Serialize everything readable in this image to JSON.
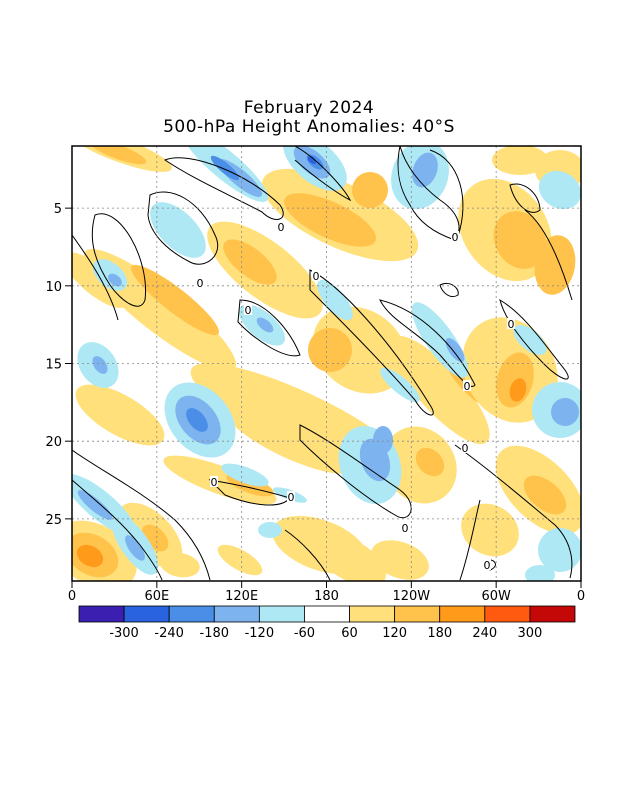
{
  "title": "February 2024",
  "subtitle": "500-hPa Height Anomalies: 40°S",
  "chart_data": {
    "type": "heatmap",
    "description_units": "geopotential height anomaly (m)",
    "x_ticks": [
      "0",
      "60E",
      "120E",
      "180",
      "120W",
      "60W",
      "0"
    ],
    "y_ticks": [
      "5",
      "10",
      "15",
      "20",
      "25"
    ],
    "y_range": [
      1,
      29
    ],
    "grid": true,
    "contour_label": "0",
    "colorbar": {
      "labels": [
        "-300",
        "-240",
        "-180",
        "-120",
        "-60",
        "60",
        "120",
        "180",
        "240",
        "300"
      ],
      "colors": [
        "#3a1fb0",
        "#2a63e0",
        "#4a8ee8",
        "#7db4f0",
        "#aee8f4",
        "#ffffff",
        "#ffe07a",
        "#ffc24a",
        "#ff9a1a",
        "#ff5a10",
        "#c40808"
      ]
    }
  }
}
